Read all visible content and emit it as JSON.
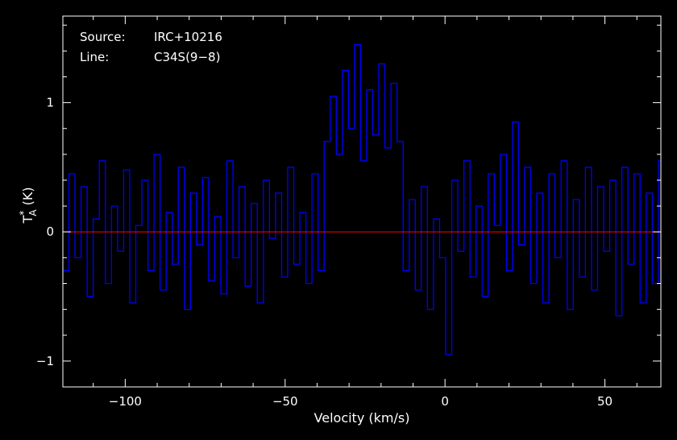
{
  "chart_data": {
    "type": "line",
    "title": "",
    "xlabel": "Velocity (km/s)",
    "ylabel": {
      "base": "T",
      "sup": "*",
      "sub": "A",
      "unit": " (K)"
    },
    "xlim": [
      -119.5,
      67.5
    ],
    "ylim": [
      -1.2,
      1.67
    ],
    "xticks": [
      -100,
      -50,
      0,
      50
    ],
    "xtick_labels": [
      "−100",
      "−50",
      "0",
      "50"
    ],
    "yticks": [
      -1,
      0,
      1
    ],
    "ytick_labels": [
      "−1",
      "0",
      "1"
    ],
    "grid": false,
    "legend": "none",
    "annotations": [
      {
        "label": "Source:",
        "value": "IRC+10216"
      },
      {
        "label": "Line:",
        "value": "C34S(9−8)"
      }
    ],
    "colors": {
      "background": "#000000",
      "frame": "#ffffff",
      "spectrum": "#0000ff",
      "baseline": "#ff0000"
    },
    "baseline_value": 0,
    "series": [
      {
        "style": "histogram",
        "color": "#0000ff",
        "x": [
          -119.5,
          -117.6,
          -115.7,
          -113.8,
          -111.9,
          -110.0,
          -108.1,
          -106.2,
          -104.3,
          -102.4,
          -100.5,
          -98.6,
          -96.7,
          -94.8,
          -92.9,
          -91.0,
          -89.1,
          -87.2,
          -85.3,
          -83.4,
          -81.5,
          -79.6,
          -77.7,
          -75.8,
          -73.9,
          -72.0,
          -70.1,
          -68.2,
          -66.3,
          -64.4,
          -62.5,
          -60.6,
          -58.7,
          -56.8,
          -54.9,
          -53.0,
          -51.1,
          -49.2,
          -47.3,
          -45.4,
          -43.5,
          -41.6,
          -39.7,
          -37.8,
          -35.9,
          -34.0,
          -32.1,
          -30.2,
          -28.3,
          -26.4,
          -24.5,
          -22.6,
          -20.7,
          -18.8,
          -16.9,
          -15.0,
          -13.1,
          -11.2,
          -9.3,
          -7.4,
          -5.5,
          -3.6,
          -1.7,
          0.2,
          2.1,
          4.0,
          5.9,
          7.8,
          9.7,
          11.6,
          13.5,
          15.4,
          17.3,
          19.2,
          21.1,
          23.0,
          24.9,
          26.8,
          28.7,
          30.6,
          32.5,
          34.4,
          36.3,
          38.2,
          40.1,
          42.0,
          43.9,
          45.8,
          47.7,
          49.6,
          51.5,
          53.4,
          55.3,
          57.2,
          59.1,
          61.0,
          62.9,
          64.8,
          66.7
        ],
        "y": [
          -0.3,
          0.45,
          -0.2,
          0.35,
          -0.5,
          0.1,
          0.55,
          -0.4,
          0.2,
          -0.15,
          0.48,
          -0.55,
          0.05,
          0.4,
          -0.3,
          0.6,
          -0.45,
          0.15,
          -0.25,
          0.5,
          -0.6,
          0.3,
          -0.1,
          0.42,
          -0.38,
          0.12,
          -0.48,
          0.55,
          -0.2,
          0.35,
          -0.42,
          0.22,
          -0.55,
          0.4,
          -0.05,
          0.3,
          -0.35,
          0.5,
          -0.25,
          0.15,
          -0.4,
          0.45,
          -0.3,
          0.7,
          1.05,
          0.6,
          1.25,
          0.8,
          1.45,
          0.55,
          1.1,
          0.75,
          1.3,
          0.65,
          1.15,
          0.7,
          -0.3,
          0.25,
          -0.45,
          0.35,
          -0.6,
          0.1,
          -0.2,
          -0.95,
          0.4,
          -0.15,
          0.55,
          -0.35,
          0.2,
          -0.5,
          0.45,
          0.05,
          0.6,
          -0.3,
          0.85,
          -0.1,
          0.5,
          -0.4,
          0.3,
          -0.55,
          0.45,
          -0.2,
          0.55,
          -0.6,
          0.25,
          -0.35,
          0.5,
          -0.45,
          0.35,
          -0.15,
          0.4,
          -0.65,
          0.5,
          -0.25,
          0.45,
          -0.55,
          0.3,
          -0.4,
          0.55
        ]
      },
      {
        "style": "line",
        "color": "#ff0000",
        "x": [
          -119.5,
          67.5
        ],
        "y": [
          0,
          0
        ]
      }
    ]
  }
}
